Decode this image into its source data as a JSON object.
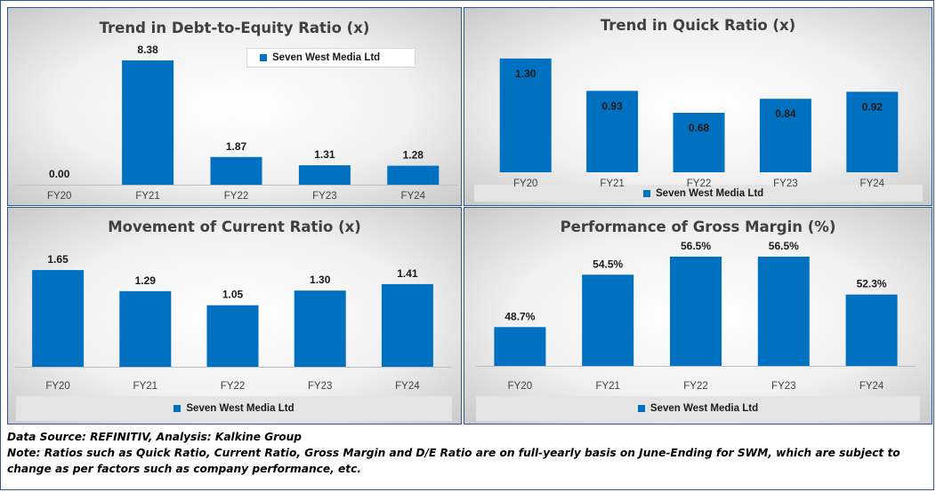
{
  "chart_data": [
    {
      "type": "bar",
      "title": "Trend in Debt-to-Equity Ratio (x)",
      "categories": [
        "FY20",
        "FY21",
        "FY22",
        "FY23",
        "FY24"
      ],
      "series": [
        {
          "name": "Seven West Media Ltd",
          "values": [
            0.0,
            8.38,
            1.87,
            1.31,
            1.28
          ]
        }
      ],
      "data_labels": [
        "0.00",
        "8.38",
        "1.87",
        "1.31",
        "1.28"
      ],
      "ylim": [
        0,
        8.8
      ],
      "legend": "top-right",
      "color": "#0070c0"
    },
    {
      "type": "bar",
      "title": "Trend in Quick Ratio (x)",
      "categories": [
        "FY20",
        "FY21",
        "FY22",
        "FY23",
        "FY24"
      ],
      "series": [
        {
          "name": "Seven West Media Ltd",
          "values": [
            1.3,
            0.93,
            0.68,
            0.84,
            0.92
          ]
        }
      ],
      "data_labels": [
        "1.30",
        "0.93",
        "0.68",
        "0.84",
        "0.92"
      ],
      "ylim": [
        0,
        1.37
      ],
      "legend": "bottom",
      "color": "#0070c0"
    },
    {
      "type": "bar",
      "title": "Movement of Current Ratio (x)",
      "categories": [
        "FY20",
        "FY21",
        "FY22",
        "FY23",
        "FY24"
      ],
      "series": [
        {
          "name": "Seven West Media Ltd",
          "values": [
            1.65,
            1.29,
            1.05,
            1.3,
            1.41
          ]
        }
      ],
      "data_labels": [
        "1.65",
        "1.29",
        "1.05",
        "1.30",
        "1.41"
      ],
      "ylim": [
        0,
        2.0
      ],
      "legend": "bottom",
      "color": "#0070c0"
    },
    {
      "type": "bar",
      "title": "Performance of Gross Margin (%)",
      "categories": [
        "FY20",
        "FY21",
        "FY22",
        "FY23",
        "FY24"
      ],
      "series": [
        {
          "name": "Seven West Media Ltd",
          "values": [
            48.7,
            54.5,
            56.5,
            56.5,
            52.3
          ]
        }
      ],
      "data_labels": [
        "48.7%",
        "54.5%",
        "56.5%",
        "56.5%",
        "52.3%"
      ],
      "ylim": [
        44.4,
        56.5
      ],
      "legend": "bottom",
      "color": "#0070c0"
    }
  ],
  "footer": {
    "source": "Data Source: REFINITIV, Analysis: Kalkine Group",
    "note": "Note: Ratios such as Quick Ratio, Current Ratio, Gross Margin and D/E Ratio are on full-yearly basis on June-Ending for SWM, which are subject to change as per factors such as company performance, etc."
  }
}
